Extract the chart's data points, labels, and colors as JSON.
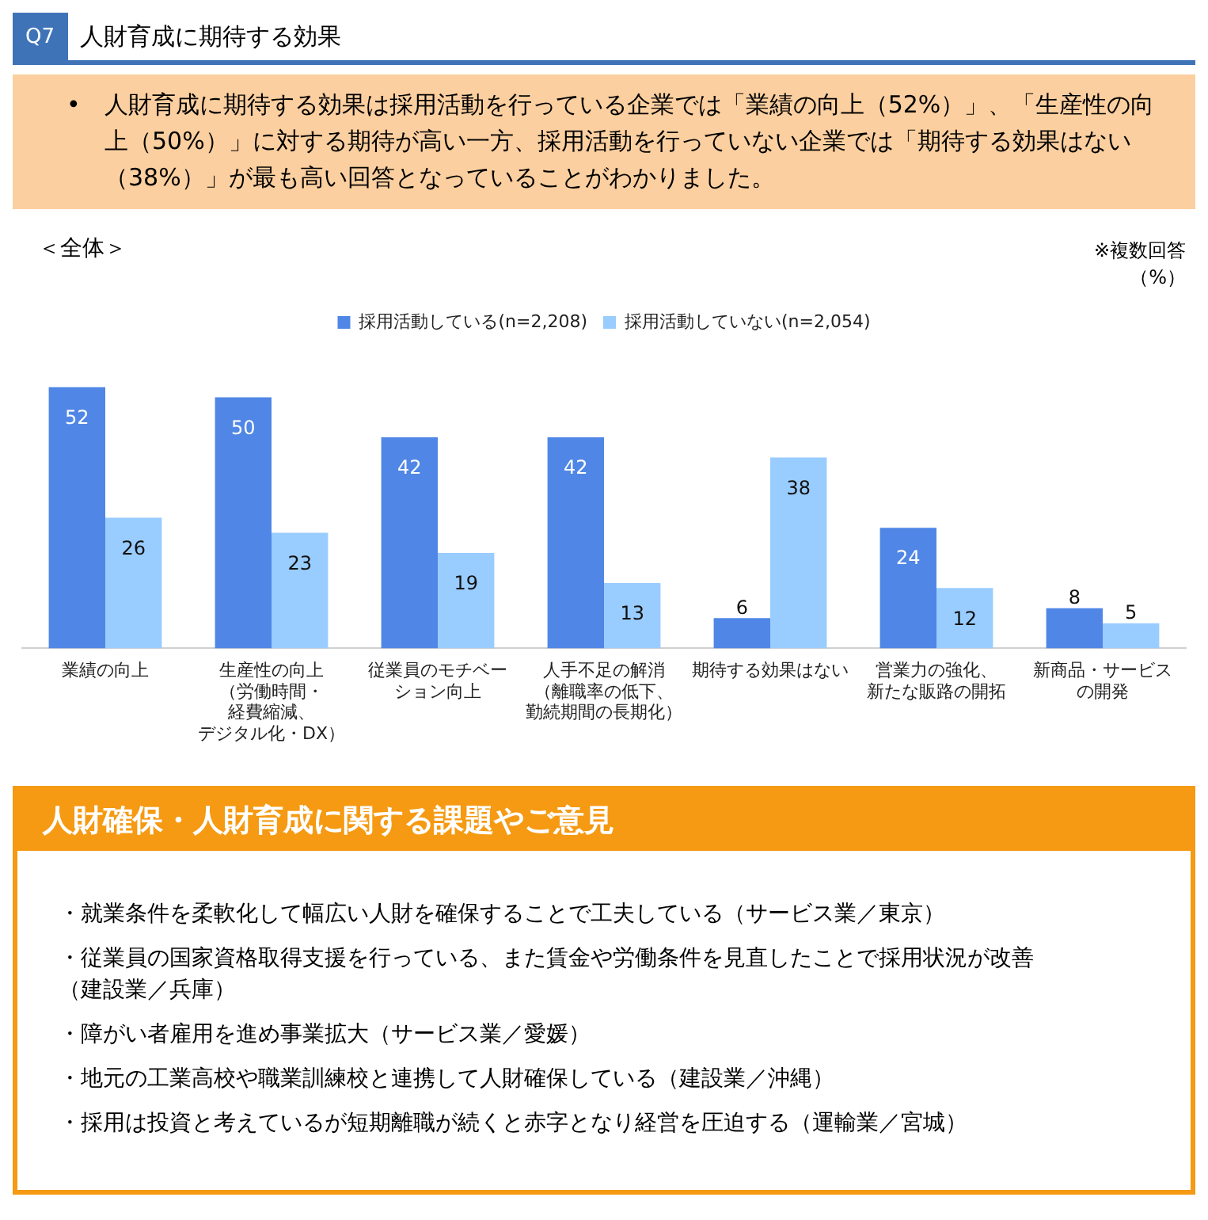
{
  "chart_data": [
    {
      "type": "bar",
      "title": "人財育成に期待する効果",
      "subtitle": "•　人財育成に期待する効果は採用活動を行っている企業では「業績の向上（52%）」、「生産性の向上（50%）」に対する期待が高い一方、採用活動を行っていない企業では「期待する効果はない（38%）」が最も高い回答となっていることがわかりました。",
      "annotations": [
        "Q7",
        "＜全体＞",
        "※複数回答",
        "（%）"
      ],
      "categories": [
        "業績の向上",
        "生産性の向上（労働時間・経費縮減、デジタル化・DX）",
        "従業員のモチベーション向上",
        "人手不足の解消（離職率の低下、勤続期間の長期化）",
        "期待する効果はない",
        "営業力の強化、新たな販路の開拓",
        "新商品・サービスの開発"
      ],
      "series": [
        {
          "name": "採用活動している(n=2,208)",
          "color": "#5087e6",
          "values": [
            52,
            50,
            42,
            42,
            6,
            24,
            8
          ]
        },
        {
          "name": "採用活動していない(n=2,054)",
          "color": "#99ccff",
          "values": [
            26,
            23,
            19,
            13,
            38,
            12,
            5
          ]
        }
      ],
      "data_labels": true,
      "legend": "top",
      "grid": false,
      "tick_labels": "x"
    },
    {
      "type": "other",
      "title": "人財確保・人財育成に関する課題やご意見",
      "annotations": [
        "・就業条件を柔軟化して幅広い人財を確保することで工夫している（サービス業／東京）",
        "・従業員の国家資格取得支援を行っている、また賃金や労働条件を見直したことで採用状況が改善（建設業／兵庫）",
        "・障がい者雇用を進め事業拡大（サービス業／愛媛）",
        "・地元の工業高校や職業訓練校と連携して人財確保している（建設業／沖縄）",
        "・採用は投資と考えているが短期離職が続くと赤字となり経営を圧迫する（運輸業／宮城）"
      ]
    }
  ]
}
